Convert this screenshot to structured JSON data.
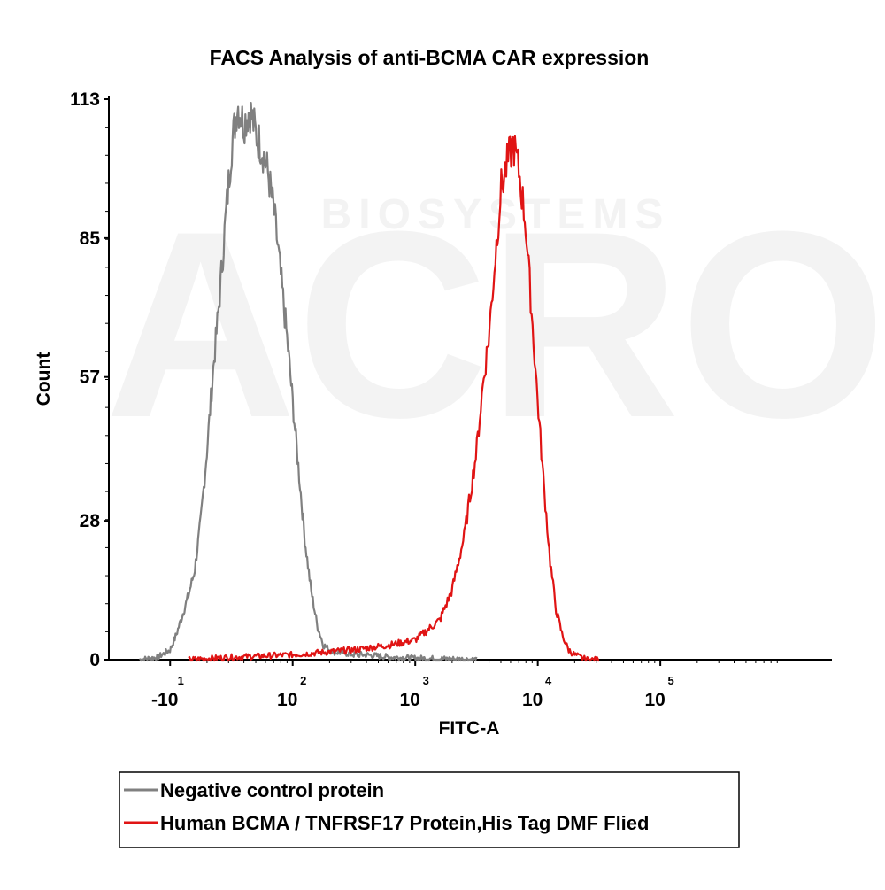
{
  "chart_data": {
    "type": "line",
    "title": "FACS Analysis of anti-BCMA CAR expression",
    "xlabel": "FITC-A",
    "ylabel": "Count",
    "ylim": [
      0,
      113
    ],
    "xlim": [
      -0.5,
      5.4
    ],
    "y_ticks": [
      {
        "value": 0,
        "label": "0"
      },
      {
        "value": 28,
        "label": "28"
      },
      {
        "value": 57,
        "label": "57"
      },
      {
        "value": 85,
        "label": "85"
      },
      {
        "value": 113,
        "label": "113"
      }
    ],
    "x_ticks": [
      {
        "pos": 0.0,
        "base": "-10",
        "exp": "1"
      },
      {
        "pos": 1.0,
        "base": "10",
        "exp": "2"
      },
      {
        "pos": 2.0,
        "base": "10",
        "exp": "3"
      },
      {
        "pos": 3.0,
        "base": "10",
        "exp": "4"
      },
      {
        "pos": 4.0,
        "base": "10",
        "exp": "5"
      }
    ],
    "series": [
      {
        "name": "Negative control protein",
        "color": "#808080",
        "x": [
          -0.25,
          -0.1,
          0.0,
          0.05,
          0.1,
          0.15,
          0.2,
          0.25,
          0.3,
          0.35,
          0.4,
          0.45,
          0.5,
          0.55,
          0.6,
          0.65,
          0.7,
          0.75,
          0.8,
          0.85,
          0.9,
          0.95,
          1.0,
          1.05,
          1.1,
          1.15,
          1.2,
          1.25,
          1.3,
          1.35,
          1.4,
          1.5,
          1.6,
          1.8,
          2.0,
          2.2,
          2.5
        ],
        "y": [
          0,
          0.5,
          2,
          5,
          9,
          13,
          18,
          28,
          42,
          58,
          72,
          88,
          103,
          112,
          108,
          111,
          106,
          103,
          98,
          90,
          78,
          66,
          52,
          38,
          24,
          14,
          7,
          3,
          2,
          1.5,
          1.5,
          1,
          1,
          0.5,
          0.3,
          0.2,
          0
        ]
      },
      {
        "name": "Human BCMA / TNFRSF17 Protein,His Tag DMF Flied",
        "color": "#e01414",
        "x": [
          0.15,
          0.5,
          1.0,
          1.5,
          1.8,
          2.0,
          2.1,
          2.2,
          2.3,
          2.4,
          2.5,
          2.55,
          2.6,
          2.65,
          2.7,
          2.75,
          2.8,
          2.85,
          2.9,
          2.95,
          3.0,
          3.05,
          3.1,
          3.15,
          3.2,
          3.25,
          3.3,
          3.35,
          3.4,
          3.5
        ],
        "y": [
          0,
          0.5,
          1,
          2,
          3,
          4,
          6,
          8,
          14,
          25,
          42,
          55,
          65,
          80,
          95,
          100,
          104,
          98,
          88,
          70,
          52,
          35,
          20,
          10,
          5,
          2,
          1,
          0.5,
          0,
          0
        ]
      }
    ],
    "legend_position": "bottom-left"
  },
  "watermark": {
    "brand": "ACRO",
    "sub": "BIOSYSTEMS"
  }
}
